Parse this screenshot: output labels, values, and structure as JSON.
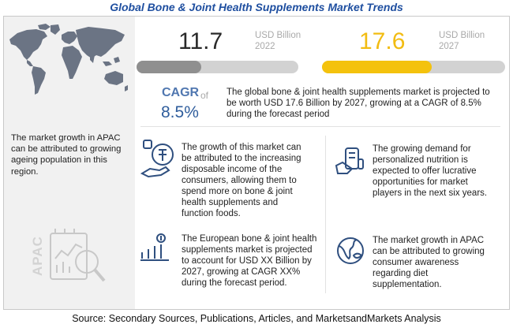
{
  "title": "Global Bone & Joint Health Supplements Market Trends",
  "left_panel": {
    "apac_note": "The market growth in APAC can be attributed to growing ageing population in this region.",
    "region_label": "APAC"
  },
  "stats": {
    "value_2022": "11.7",
    "unit_2022": "USD Billion",
    "year_2022": "2022",
    "value_2027": "17.6",
    "unit_2027": "USD Billion",
    "year_2027": "2027",
    "bar_2022_fraction": 0.4,
    "bar_2027_fraction": 0.6
  },
  "cagr": {
    "label": "CAGR",
    "of": "of",
    "value": "8.5%"
  },
  "summary": "The global bone & joint health supplements market is projected to be worth USD 17.6 Billion by 2027, growing at a CAGR of 8.5% during the forecast period",
  "points": [
    {
      "icon": "income-hand-icon",
      "text": "The growth of this market can be attributed to the increasing disposable income of the consumers, allowing them to spend more on bone & joint health supplements and function foods."
    },
    {
      "icon": "personalized-nutrition-icon",
      "text": "The growing demand for personalized nutrition is expected to offer lucrative opportunities for market players in the next six years."
    },
    {
      "icon": "growth-chart-icon",
      "text": "The European bone & joint health supplements market is projected to account for USD XX Billion by 2027, growing at CAGR XX% during the forecast period."
    },
    {
      "icon": "globe-leaf-icon",
      "text": "The market growth in APAC can be attributed to growing consumer awareness regarding diet supplementation."
    }
  ],
  "source": "Source: Secondary Sources, Publications, Articles, and MarketsandMarkets Analysis",
  "colors": {
    "title_blue": "#1f4fa0",
    "bar_2022": "#8f8f8f",
    "bar_2027": "#f4c20d",
    "cagr_blue": "#5077b0",
    "value_2027": "#f2bc12"
  }
}
